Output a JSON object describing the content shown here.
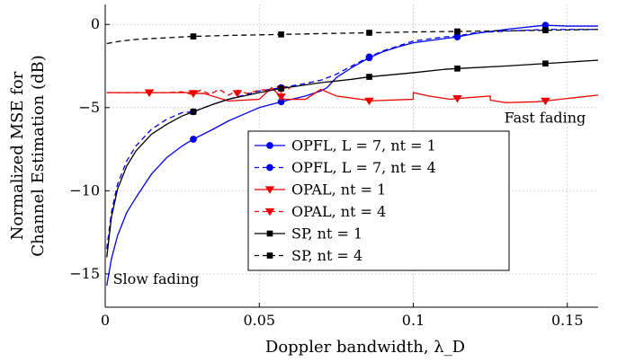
{
  "chart_data": {
    "type": "line",
    "xlabel": "Doppler bandwidth, λ_D",
    "ylabel_line1": "Normalized MSE for",
    "ylabel_line2": "Channel Estimation (dB)",
    "xlim": [
      0,
      0.16
    ],
    "ylim": [
      -17,
      1.2
    ],
    "x_ticks": [
      0,
      0.05,
      0.1,
      0.15
    ],
    "x_tick_labels": [
      "0",
      "0.05",
      "0.1",
      "0.15"
    ],
    "y_ticks": [
      0,
      -5,
      -10,
      -15
    ],
    "y_tick_labels": [
      "0",
      "−5",
      "−10",
      "−15"
    ],
    "grid": true,
    "legend_position": "bottom-center",
    "annotations": [
      {
        "text": "Fast fading",
        "x": 0.156,
        "y": -5.9,
        "anchor": "end"
      },
      {
        "text": "Slow fading",
        "x": 0.0025,
        "y": -15.6,
        "anchor": "start"
      }
    ],
    "series": [
      {
        "name": "OPFL, L = 7, n_t = 1",
        "legend_label": "OPFL, L = 7, nt = 1",
        "color": "#0000ee",
        "dash": "solid",
        "marker": "circle",
        "x": [
          0.0005,
          0.002,
          0.004,
          0.007,
          0.01,
          0.015,
          0.02,
          0.025,
          0.0286,
          0.035,
          0.04,
          0.045,
          0.05,
          0.0571,
          0.065,
          0.07,
          0.072,
          0.075,
          0.08,
          0.0857,
          0.09,
          0.095,
          0.1,
          0.11,
          0.1143,
          0.12,
          0.13,
          0.14,
          0.1429,
          0.15,
          0.16
        ],
        "y": [
          -15.7,
          -14.1,
          -12.7,
          -11.3,
          -10.4,
          -9.0,
          -8.0,
          -7.3,
          -6.9,
          -6.3,
          -5.8,
          -5.4,
          -5.0,
          -4.65,
          -4.3,
          -4.0,
          -3.8,
          -3.2,
          -2.6,
          -2.0,
          -1.65,
          -1.35,
          -1.1,
          -0.85,
          -0.75,
          -0.55,
          -0.3,
          -0.1,
          -0.05,
          -0.1,
          -0.1
        ],
        "marker_x": [
          0.0286,
          0.0571,
          0.0857,
          0.1143,
          0.1429
        ],
        "marker_y": [
          -6.9,
          -4.65,
          -2.0,
          -0.75,
          -0.05
        ]
      },
      {
        "name": "OPFL, L = 7, n_t = 4",
        "legend_label": "OPFL, L = 7, nt = 4",
        "color": "#0000ee",
        "dash": "dashed",
        "marker": "circle",
        "x": [
          0.0005,
          0.002,
          0.004,
          0.007,
          0.01,
          0.015,
          0.02,
          0.025,
          0.0286,
          0.035,
          0.04,
          0.05,
          0.0571,
          0.065,
          0.07,
          0.075,
          0.08,
          0.0857,
          0.09,
          0.1,
          0.11,
          0.1143,
          0.12,
          0.13,
          0.1429,
          0.15,
          0.16
        ],
        "y": [
          -13.5,
          -11.3,
          -9.6,
          -8.2,
          -7.3,
          -6.3,
          -5.7,
          -5.3,
          -5.25,
          -4.8,
          -4.5,
          -4.0,
          -3.8,
          -3.55,
          -3.35,
          -3.0,
          -2.5,
          -1.95,
          -1.6,
          -1.0,
          -0.75,
          -0.7,
          -0.5,
          -0.4,
          -0.3,
          -0.3,
          -0.3
        ],
        "marker_x": [
          0.0286,
          0.0571,
          0.0857,
          0.1143,
          0.1429
        ],
        "marker_y": [
          -5.25,
          -3.8,
          -1.95,
          -0.7,
          -0.3
        ]
      },
      {
        "name": "OPAL, n_t = 1",
        "legend_label": "OPAL, nt = 1",
        "color": "#ee0000",
        "dash": "solid",
        "marker": "triangle-down",
        "x": [
          0.0005,
          0.01,
          0.02,
          0.028,
          0.0286,
          0.032,
          0.04,
          0.045,
          0.05,
          0.054,
          0.0571,
          0.058,
          0.065,
          0.07,
          0.075,
          0.085,
          0.0857,
          0.092,
          0.1,
          0.1,
          0.105,
          0.112,
          0.1143,
          0.118,
          0.125,
          0.125,
          0.13,
          0.14,
          0.1429,
          0.15,
          0.16
        ],
        "y": [
          -4.1,
          -4.1,
          -4.1,
          -4.1,
          -4.15,
          -4.15,
          -4.6,
          -4.55,
          -4.5,
          -3.8,
          -4.35,
          -4.5,
          -4.5,
          -3.9,
          -4.3,
          -4.55,
          -4.6,
          -4.55,
          -4.5,
          -4.1,
          -4.3,
          -4.5,
          -4.45,
          -4.4,
          -4.3,
          -4.55,
          -4.7,
          -4.65,
          -4.6,
          -4.45,
          -4.25
        ],
        "marker_x": [
          0.0143,
          0.0286,
          0.0571,
          0.0857,
          0.1143,
          0.1429
        ],
        "marker_y": [
          -4.1,
          -4.15,
          -4.35,
          -4.6,
          -4.45,
          -4.6
        ]
      },
      {
        "name": "OPAL, n_t = 4",
        "legend_label": "OPAL, nt = 4",
        "color": "#ee0000",
        "dash": "dashed",
        "marker": "triangle-down",
        "x": [
          0.0005,
          0.01,
          0.02,
          0.025,
          0.028,
          0.031,
          0.034,
          0.037,
          0.04,
          0.043,
          0.046,
          0.05,
          0.0571,
          0.06
        ],
        "y": [
          -4.1,
          -4.1,
          -4.1,
          -4.05,
          -4.2,
          -3.95,
          -4.2,
          -3.9,
          -4.25,
          -3.95,
          -4.15,
          -3.95,
          -3.9,
          -3.85
        ],
        "marker_x": [
          0.0143,
          0.0286,
          0.0429,
          0.0571
        ],
        "marker_y": [
          -4.1,
          -4.15,
          -4.15,
          -3.9
        ]
      },
      {
        "name": "SP, n_t = 1",
        "legend_label": "SP, nt = 1",
        "color": "#000000",
        "dash": "solid",
        "marker": "square",
        "x": [
          0.0005,
          0.002,
          0.004,
          0.007,
          0.01,
          0.015,
          0.02,
          0.025,
          0.0286,
          0.035,
          0.04,
          0.05,
          0.0571,
          0.07,
          0.08,
          0.0857,
          0.1,
          0.11,
          0.1143,
          0.13,
          0.1429,
          0.16
        ],
        "y": [
          -14.0,
          -11.6,
          -9.9,
          -8.5,
          -7.6,
          -6.6,
          -6.0,
          -5.5,
          -5.25,
          -4.8,
          -4.5,
          -4.1,
          -3.85,
          -3.5,
          -3.3,
          -3.15,
          -2.9,
          -2.7,
          -2.65,
          -2.5,
          -2.35,
          -2.15
        ],
        "marker_x": [
          0.0286,
          0.0571,
          0.0857,
          0.1143,
          0.1429
        ],
        "marker_y": [
          -5.25,
          -3.85,
          -3.15,
          -2.65,
          -2.35
        ]
      },
      {
        "name": "SP, n_t = 4",
        "legend_label": "SP, nt = 4",
        "color": "#000000",
        "dash": "dashed",
        "marker": "square",
        "x": [
          0.0005,
          0.005,
          0.01,
          0.02,
          0.0286,
          0.04,
          0.0571,
          0.07,
          0.0857,
          0.1,
          0.1143,
          0.13,
          0.1429,
          0.16
        ],
        "y": [
          -1.15,
          -1.0,
          -0.9,
          -0.8,
          -0.72,
          -0.66,
          -0.6,
          -0.55,
          -0.5,
          -0.45,
          -0.42,
          -0.38,
          -0.35,
          -0.3
        ],
        "marker_x": [
          0.0286,
          0.0571,
          0.0857,
          0.1143,
          0.1429
        ],
        "marker_y": [
          -0.72,
          -0.6,
          -0.5,
          -0.42,
          -0.35
        ]
      }
    ]
  }
}
